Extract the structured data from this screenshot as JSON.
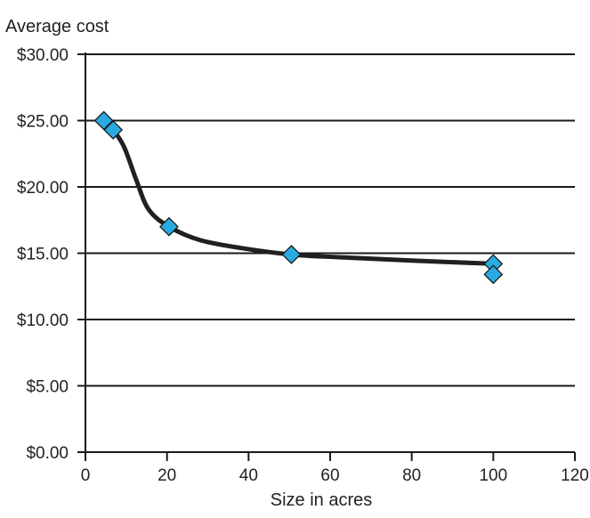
{
  "chart_data": {
    "type": "scatter",
    "ylabel": "Average cost",
    "xlabel": "Size in acres",
    "xlim": [
      0,
      120
    ],
    "ylim": [
      0,
      30
    ],
    "x_ticks": [
      0,
      20,
      40,
      60,
      80,
      100,
      120
    ],
    "x_tick_labels": [
      "0",
      "20",
      "40",
      "60",
      "80",
      "100",
      "120"
    ],
    "y_ticks": [
      0,
      5,
      10,
      15,
      20,
      25,
      30
    ],
    "y_tick_labels": [
      "$0.00",
      "$5.00",
      "$10.00",
      "$15.00",
      "$20.00",
      "$25.00",
      "$30.00"
    ],
    "grid": "horizontal",
    "points": [
      {
        "x": 4.5,
        "y": 25.0
      },
      {
        "x": 6.8,
        "y": 24.3
      },
      {
        "x": 20.5,
        "y": 17.0
      },
      {
        "x": 50.5,
        "y": 14.9
      },
      {
        "x": 100,
        "y": 14.2
      },
      {
        "x": 100,
        "y": 13.4
      }
    ],
    "trend_curve": [
      {
        "x": 4.5,
        "y": 25.0
      },
      {
        "x": 6.8,
        "y": 24.3
      },
      {
        "x": 9.5,
        "y": 23.0
      },
      {
        "x": 12.5,
        "y": 20.5
      },
      {
        "x": 15.5,
        "y": 18.3
      },
      {
        "x": 20.5,
        "y": 17.0
      },
      {
        "x": 28,
        "y": 16.0
      },
      {
        "x": 38,
        "y": 15.4
      },
      {
        "x": 50.5,
        "y": 14.9
      },
      {
        "x": 62,
        "y": 14.7
      },
      {
        "x": 80,
        "y": 14.45
      },
      {
        "x": 100,
        "y": 14.2
      }
    ],
    "marker_color": "#29ABE2",
    "marker_edge_color": "#1a1a1a",
    "line_color": "#231f20"
  }
}
